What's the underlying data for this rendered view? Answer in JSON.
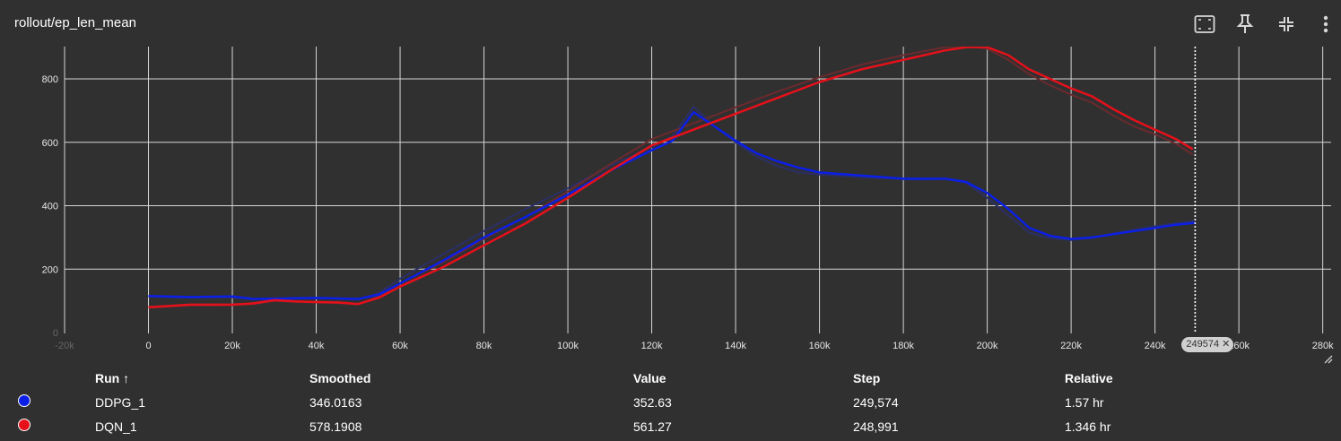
{
  "title": "rollout/ep_len_mean",
  "toolbar": {
    "icons": [
      "fit-domain-icon",
      "pin-icon",
      "collapse-icon",
      "more-vert-icon"
    ]
  },
  "table": {
    "headers": {
      "run": "Run ↑",
      "smoothed": "Smoothed",
      "value": "Value",
      "step": "Step",
      "relative": "Relative"
    },
    "rows": [
      {
        "color": "#0b1fe6",
        "run": "DDPG_1",
        "smoothed": "346.0163",
        "value": "352.63",
        "step": "249,574",
        "relative": "1.57 hr"
      },
      {
        "color": "#e6101a",
        "run": "DQN_1",
        "smoothed": "578.1908",
        "value": "561.27",
        "step": "248,991",
        "relative": "1.346 hr"
      }
    ]
  },
  "step_marker": {
    "label": "249574"
  },
  "chart_data": {
    "type": "line",
    "title": "rollout/ep_len_mean",
    "xlim": [
      -20000,
      282000
    ],
    "ylim": [
      0,
      900
    ],
    "x_ticks": [
      -20000,
      0,
      20000,
      40000,
      60000,
      80000,
      100000,
      120000,
      140000,
      160000,
      180000,
      200000,
      220000,
      240000,
      260000,
      280000
    ],
    "x_tick_labels": [
      "-20k",
      "0",
      "20k",
      "40k",
      "60k",
      "80k",
      "100k",
      "120k",
      "140k",
      "160k",
      "180k",
      "200k",
      "220k",
      "240k",
      "260k",
      "280k"
    ],
    "y_ticks": [
      0,
      200,
      400,
      600,
      800
    ],
    "y_tick_labels": [
      "0",
      "200",
      "400",
      "600",
      "800"
    ],
    "grid": true,
    "hover_step": 249574,
    "series": [
      {
        "name": "DDPG_1",
        "color": "#0b1fe6",
        "raw_color": "#2b2f66",
        "x": [
          0,
          10000,
          20000,
          25000,
          30000,
          40000,
          50000,
          55000,
          60000,
          70000,
          80000,
          90000,
          100000,
          110000,
          120000,
          125000,
          130000,
          135000,
          140000,
          145000,
          150000,
          155000,
          160000,
          170000,
          180000,
          185000,
          190000,
          195000,
          200000,
          205000,
          210000,
          215000,
          220000,
          225000,
          230000,
          240000,
          245000,
          249574
        ],
        "smoothed": [
          115,
          112,
          114,
          106,
          107,
          109,
          106,
          120,
          155,
          225,
          300,
          365,
          435,
          510,
          575,
          605,
          695,
          650,
          605,
          565,
          540,
          520,
          505,
          495,
          485,
          485,
          485,
          475,
          440,
          390,
          330,
          305,
          295,
          300,
          310,
          330,
          340,
          346
        ],
        "raw": [
          113,
          110,
          112,
          104,
          105,
          108,
          104,
          125,
          170,
          245,
          320,
          390,
          455,
          525,
          585,
          620,
          712,
          650,
          600,
          555,
          525,
          505,
          498,
          490,
          484,
          482,
          485,
          472,
          425,
          370,
          315,
          298,
          292,
          298,
          313,
          335,
          345,
          352
        ]
      },
      {
        "name": "DQN_1",
        "color": "#e6101a",
        "raw_color": "#6b2a2e",
        "x": [
          0,
          10000,
          20000,
          25000,
          30000,
          35000,
          40000,
          45000,
          50000,
          55000,
          60000,
          70000,
          80000,
          90000,
          100000,
          110000,
          120000,
          130000,
          140000,
          150000,
          160000,
          170000,
          180000,
          190000,
          195000,
          200000,
          205000,
          210000,
          215000,
          220000,
          225000,
          230000,
          235000,
          240000,
          245000,
          248991
        ],
        "smoothed": [
          80,
          88,
          88,
          92,
          102,
          98,
          96,
          95,
          90,
          110,
          145,
          205,
          275,
          345,
          425,
          510,
          590,
          640,
          690,
          740,
          790,
          830,
          860,
          890,
          900,
          900,
          875,
          830,
          800,
          770,
          745,
          705,
          670,
          640,
          610,
          578
        ],
        "raw": [
          78,
          86,
          87,
          90,
          100,
          97,
          95,
          93,
          89,
          115,
          155,
          220,
          295,
          365,
          445,
          530,
          610,
          660,
          710,
          760,
          805,
          845,
          875,
          900,
          905,
          895,
          860,
          815,
          780,
          750,
          725,
          685,
          650,
          625,
          595,
          561
        ]
      }
    ]
  }
}
